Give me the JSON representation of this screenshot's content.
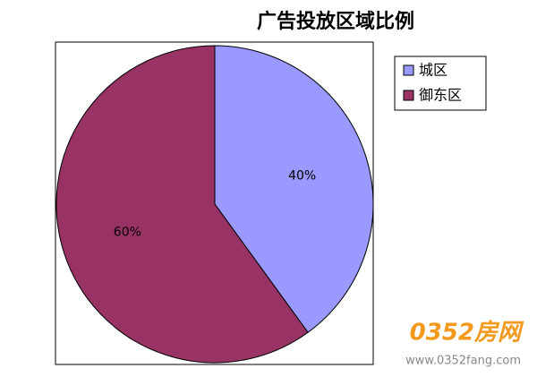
{
  "chart_data": {
    "type": "pie",
    "title": "广告投放区域比例",
    "categories": [
      "城区",
      "御东区"
    ],
    "values": [
      40,
      60
    ],
    "value_labels": [
      "40%",
      "60%"
    ],
    "colors": [
      "#9999ff",
      "#993366"
    ],
    "legend": "right"
  },
  "watermark": {
    "logo": "0352房网",
    "url": "www.0352fang.com"
  }
}
